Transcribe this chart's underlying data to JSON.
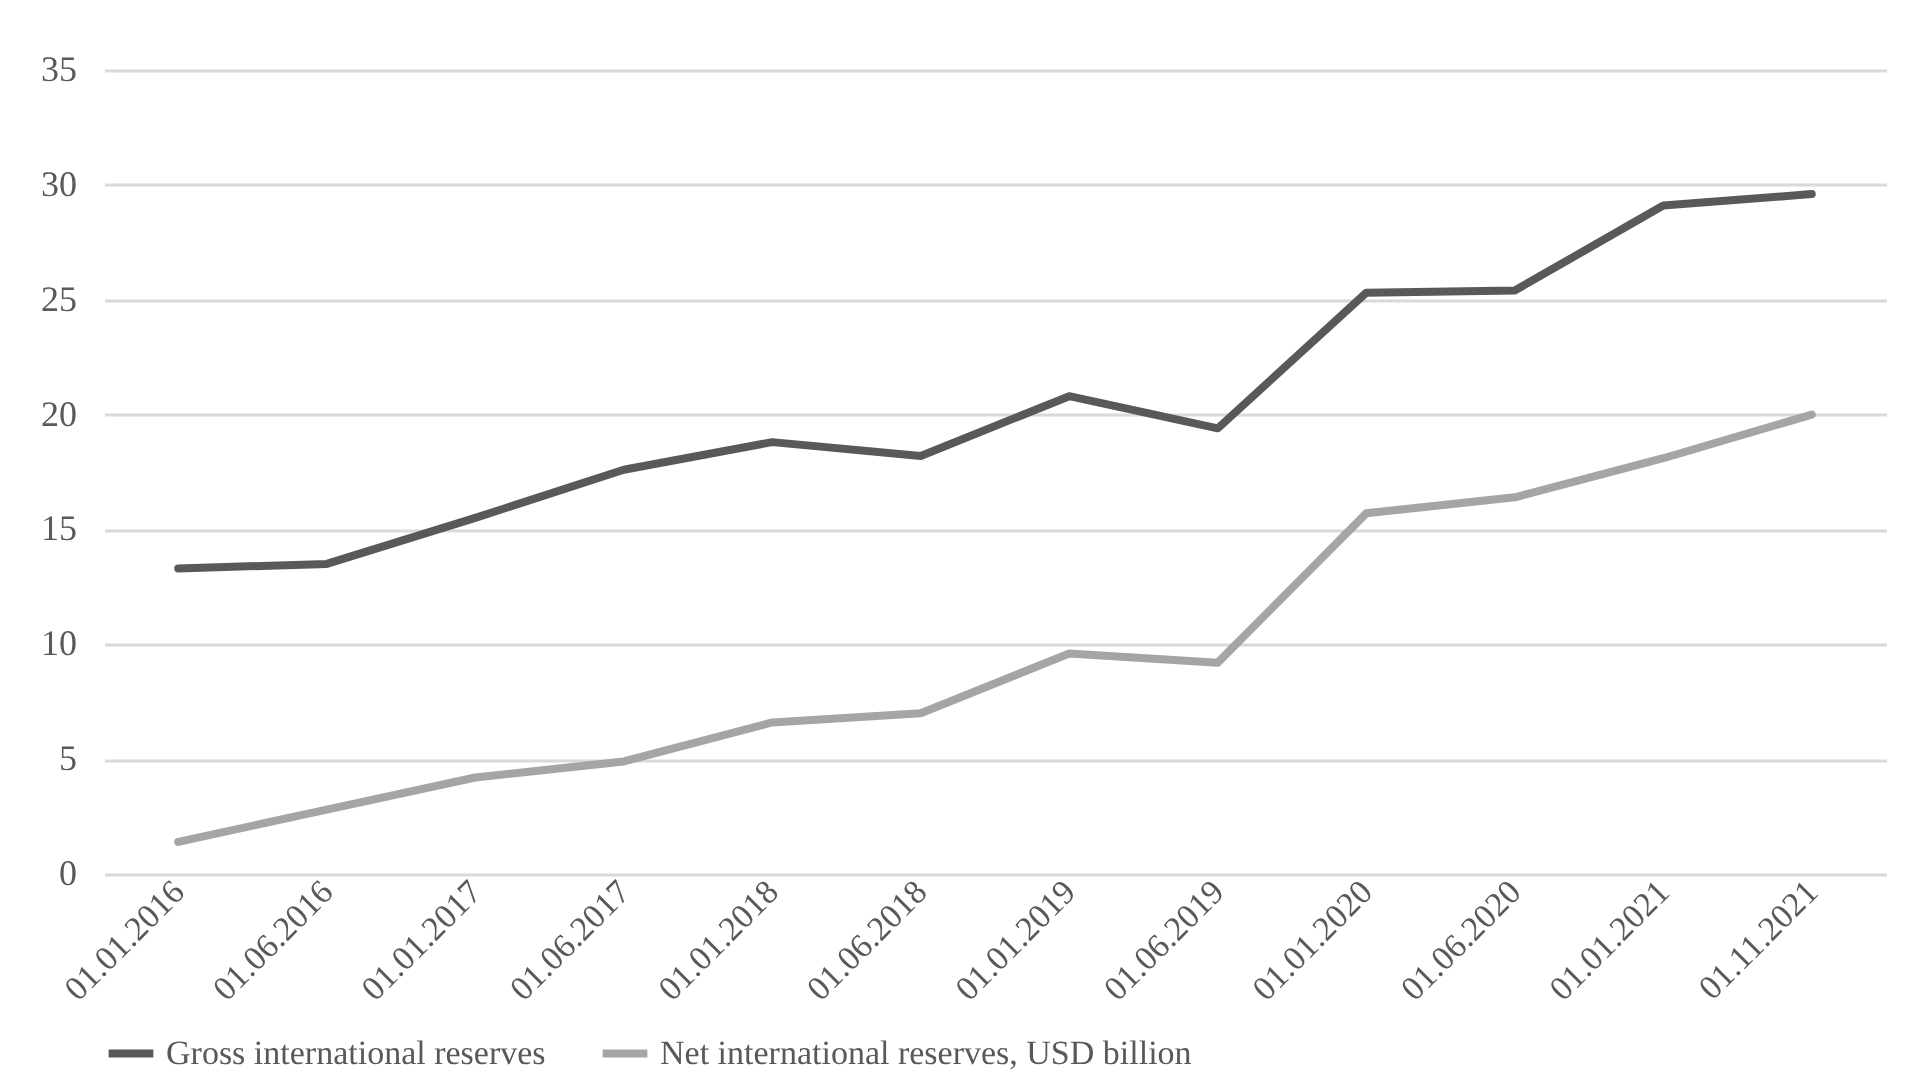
{
  "chart_data": {
    "type": "line",
    "categories": [
      "01.01.2016",
      "01.06.2016",
      "01.01.2017",
      "01.06.2017",
      "01.01.2018",
      "01.06.2018",
      "01.01.2019",
      "01.06.2019",
      "01.01.2020",
      "01.06.2020",
      "01.01.2021",
      "01.11.2021"
    ],
    "series": [
      {
        "name": "Gross international reserves",
        "color": "#595959",
        "values": [
          13.3,
          13.5,
          15.5,
          17.6,
          18.8,
          18.2,
          20.8,
          19.4,
          25.3,
          25.4,
          29.1,
          29.6
        ]
      },
      {
        "name": "Net international reserves, USD billion",
        "color": "#a5a5a5",
        "values": [
          1.4,
          2.8,
          4.2,
          4.9,
          6.6,
          7.0,
          9.6,
          9.2,
          15.7,
          16.4,
          18.1,
          20.0
        ]
      }
    ],
    "ylim": [
      0,
      35
    ],
    "yticks": [
      0,
      5,
      10,
      15,
      20,
      25,
      30,
      35
    ],
    "grid": "y",
    "legend": "bottom",
    "marker": "none",
    "line_style": "solid"
  }
}
